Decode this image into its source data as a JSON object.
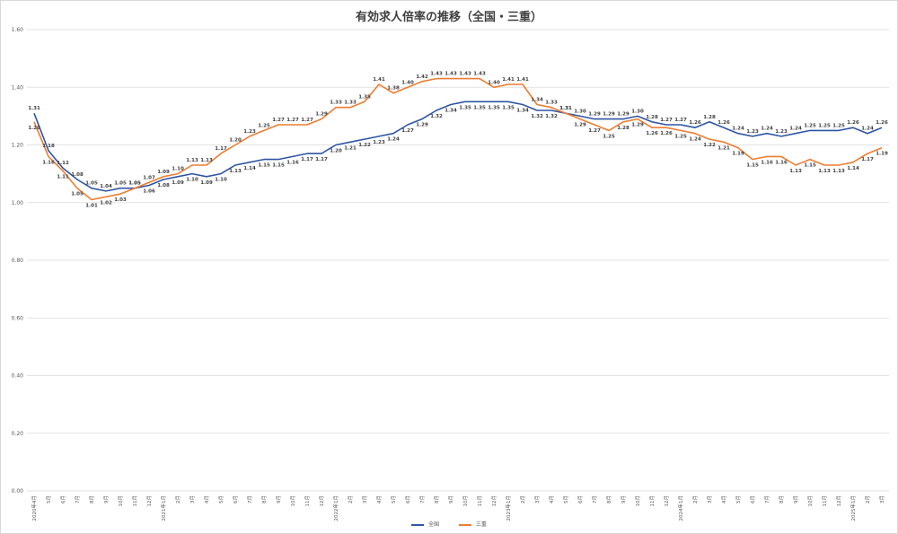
{
  "chart_data": {
    "type": "line",
    "title": "有効求人倍率の推移（全国・三重）",
    "ylim": [
      0.0,
      1.6
    ],
    "yticks": [
      "0.00",
      "0.20",
      "0.40",
      "0.60",
      "0.80",
      "1.00",
      "1.20",
      "1.40",
      "1.60"
    ],
    "grid": true,
    "legend_position": "bottom",
    "categories": [
      "2020年4月",
      "5月",
      "6月",
      "7月",
      "8月",
      "9月",
      "10月",
      "11月",
      "12月",
      "2021年1月",
      "2月",
      "3月",
      "4月",
      "5月",
      "6月",
      "7月",
      "8月",
      "9月",
      "10月",
      "11月",
      "12月",
      "2022年1月",
      "2月",
      "3月",
      "4月",
      "5月",
      "6月",
      "7月",
      "8月",
      "9月",
      "10月",
      "11月",
      "12月",
      "2023年1月",
      "2月",
      "3月",
      "4月",
      "5月",
      "6月",
      "7月",
      "8月",
      "9月",
      "10月",
      "11月",
      "12月",
      "2024年1月",
      "2月",
      "3月",
      "4月",
      "5月",
      "6月",
      "7月",
      "8月",
      "9月",
      "10月",
      "11月",
      "12月",
      "2025年1月",
      "2月",
      "3月"
    ],
    "series": [
      {
        "name": "全国",
        "color": "#2f55a4",
        "values": [
          1.31,
          1.18,
          1.12,
          1.08,
          1.05,
          1.04,
          1.05,
          1.05,
          1.06,
          1.08,
          1.09,
          1.1,
          1.09,
          1.1,
          1.13,
          1.14,
          1.15,
          1.15,
          1.16,
          1.17,
          1.17,
          1.2,
          1.21,
          1.22,
          1.23,
          1.24,
          1.27,
          1.29,
          1.32,
          1.34,
          1.35,
          1.35,
          1.35,
          1.35,
          1.34,
          1.32,
          1.32,
          1.31,
          1.3,
          1.29,
          1.29,
          1.29,
          1.3,
          1.28,
          1.27,
          1.27,
          1.26,
          1.28,
          1.26,
          1.24,
          1.23,
          1.24,
          1.23,
          1.24,
          1.25,
          1.25,
          1.25,
          1.26,
          1.24,
          1.26
        ],
        "labels": [
          "1.31",
          "1.18",
          "1.12",
          "1.08",
          "1.05",
          "1.04",
          "1.05",
          "1.05",
          "1.06",
          "1.08",
          "1.09",
          "1.10",
          "1.09",
          "1.10",
          "1.13",
          "1.14",
          "1.15",
          "1.15",
          "1.16",
          "1.17",
          "1.17",
          "1.20",
          "1.21",
          "1.22",
          "1.23",
          "1.24",
          "1.27",
          "1.29",
          "1.32",
          "1.34",
          "1.35",
          "1.35",
          "1.35",
          "1.35",
          "1.34",
          "1.32",
          "1.32",
          "1.31",
          "1.30",
          "1.29",
          "1.29",
          "1.29",
          "1.30",
          "1.28",
          "1.27",
          "1.27",
          "1.26",
          "1.28",
          "1.26",
          "1.24",
          "1.23",
          "1.24",
          "1.23",
          "1.24",
          "1.25",
          "1.25",
          "1.25",
          "1.26",
          "1.24",
          "1.26"
        ]
      },
      {
        "name": "三重",
        "color": "#ed7d31",
        "values": [
          1.28,
          1.16,
          1.11,
          1.05,
          1.01,
          1.02,
          1.03,
          1.05,
          1.07,
          1.09,
          1.1,
          1.13,
          1.13,
          1.17,
          1.2,
          1.23,
          1.25,
          1.27,
          1.27,
          1.27,
          1.29,
          1.33,
          1.33,
          1.35,
          1.41,
          1.38,
          1.4,
          1.42,
          1.43,
          1.43,
          1.43,
          1.43,
          1.4,
          1.41,
          1.41,
          1.34,
          1.33,
          1.31,
          1.29,
          1.27,
          1.25,
          1.28,
          1.29,
          1.26,
          1.26,
          1.25,
          1.24,
          1.22,
          1.21,
          1.19,
          1.15,
          1.16,
          1.16,
          1.13,
          1.15,
          1.13,
          1.13,
          1.14,
          1.17,
          1.19
        ],
        "labels": [
          "1.28",
          "1.16",
          "1.11",
          "1.05",
          "1.01",
          "1.02",
          "1.03",
          "1.05",
          "1.07",
          "1.09",
          "1.10",
          "1.13",
          "1.13",
          "1.17",
          "1.20",
          "1.23",
          "1.25",
          "1.27",
          "1.27",
          "1.27",
          "1.29",
          "1.33",
          "1.33",
          "1.35",
          "1.41",
          "1.38",
          "1.40",
          "1.42",
          "1.43",
          "1.43",
          "1.43",
          "1.43",
          "1.40",
          "1.41",
          "1.41",
          "1.34",
          "1.33",
          "1.31",
          "1.29",
          "1.27",
          "1.25",
          "1.28",
          "1.29",
          "1.26",
          "1.26",
          "1.25",
          "1.24",
          "1.22",
          "1.21",
          "1.19",
          "1.15",
          "1.16",
          "1.16",
          "1.13",
          "1.15",
          "1.13",
          "1.13",
          "1.14",
          "1.17",
          "1.19"
        ]
      }
    ]
  }
}
